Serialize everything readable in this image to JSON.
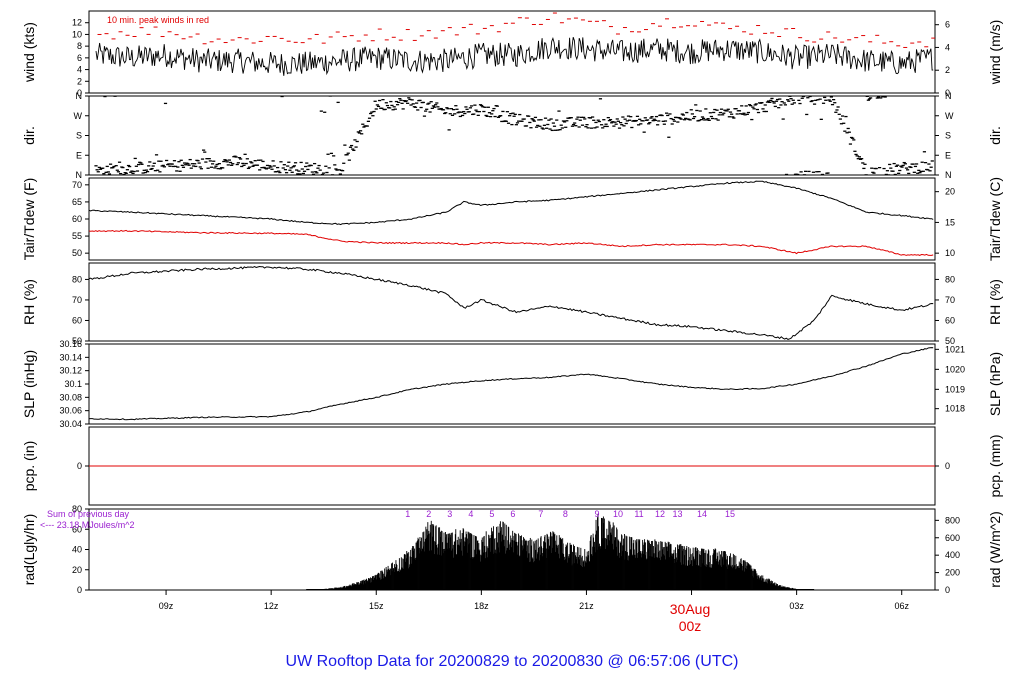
{
  "title": "UW Rooftop Data for 20200829  to  20200830 @ 06:57:06  (UTC)",
  "x_axis": {
    "tick_labels": [
      "09z",
      "12z",
      "15z",
      "18z",
      "21z",
      "00z",
      "03z",
      "06z"
    ],
    "tick_hours": [
      9,
      12,
      15,
      18,
      21,
      24,
      27,
      30
    ],
    "range_hours": [
      6.8,
      30.95
    ],
    "date_label_line1": "30Aug",
    "date_label_line2": "00z",
    "date_label_hour": 24
  },
  "colors": {
    "series": "#000000",
    "peak": "#e00000",
    "dewpoint": "#e00000",
    "precip": "#e00000",
    "note": "#9a1fd0",
    "title": "#1a1ae6"
  },
  "chart_data": [
    {
      "type": "line",
      "name": "wind",
      "ylabel_left": "wind (kts)",
      "ylabel_right": "wind (m/s)",
      "annotation": "10 min. peak winds in red",
      "ylim": [
        0,
        14
      ],
      "left_ticks": [
        0,
        2,
        4,
        6,
        8,
        10,
        12
      ],
      "right_ticks": [
        0,
        2,
        4,
        6
      ],
      "right_ticks_in_left_units": [
        0,
        3.89,
        7.78,
        11.66
      ],
      "x": [
        7,
        8,
        9,
        10,
        11,
        12,
        13,
        14,
        15,
        16,
        17,
        18,
        19,
        20,
        21,
        22,
        23,
        24,
        25,
        26,
        27,
        28,
        29,
        30,
        30.9
      ],
      "values": [
        6.5,
        6,
        6.5,
        5.5,
        5.5,
        5,
        5,
        5.5,
        6,
        5.5,
        5.5,
        6.5,
        6.5,
        8,
        7.5,
        7,
        7.5,
        7,
        7.5,
        7,
        6,
        6.5,
        5.5,
        5,
        6
      ],
      "peak_values": [
        10,
        10.5,
        10.5,
        9.5,
        9,
        9.5,
        9,
        9.5,
        10,
        10,
        10.5,
        11,
        12,
        13,
        12,
        11,
        12,
        12.5,
        11,
        11,
        10,
        9.5,
        9,
        8.5,
        9
      ]
    },
    {
      "type": "scatter",
      "name": "wind direction",
      "ylabel_left": "dir.",
      "ylabel_right": "dir.",
      "tick_labels": [
        "N",
        "E",
        "S",
        "W",
        "N"
      ],
      "tick_degrees": [
        0,
        90,
        180,
        270,
        360
      ],
      "ylim": [
        0,
        360
      ],
      "x": [
        7,
        8,
        9,
        10,
        11,
        12,
        13,
        14,
        15,
        16,
        17,
        18,
        19,
        20,
        21,
        22,
        23,
        24,
        25,
        26,
        27,
        28,
        29,
        30,
        30.9
      ],
      "values": [
        20,
        30,
        40,
        50,
        60,
        40,
        30,
        25,
        320,
        330,
        290,
        300,
        250,
        230,
        240,
        240,
        250,
        270,
        280,
        310,
        350,
        350,
        10,
        30,
        40
      ]
    },
    {
      "type": "line",
      "name": "temperature and dewpoint",
      "ylabel_left": "Tair/Tdew (F)",
      "ylabel_right": "Tair/Tdew (C)",
      "ylim": [
        48,
        72
      ],
      "left_ticks": [
        50,
        55,
        60,
        65,
        70
      ],
      "right_ticks": [
        10,
        15,
        20
      ],
      "right_ticks_in_left_units": [
        50,
        59,
        68
      ],
      "x": [
        6.8,
        8,
        10,
        12,
        13,
        14,
        15,
        16,
        17,
        17.5,
        18,
        19,
        20,
        21,
        22,
        23,
        24,
        25,
        26,
        27,
        28,
        29,
        30,
        30.9
      ],
      "series": [
        {
          "name": "Tair",
          "values": [
            62.5,
            62,
            61,
            60,
            59,
            58.5,
            59,
            60,
            62,
            65,
            64,
            65,
            65.5,
            66.5,
            67.5,
            68.5,
            69.5,
            70.5,
            71,
            69,
            66,
            62,
            61,
            60
          ]
        },
        {
          "name": "Tdew",
          "values": [
            56.5,
            56.5,
            56,
            55.8,
            55.5,
            53.5,
            53,
            53,
            53,
            52.5,
            53,
            53,
            52.5,
            53,
            52,
            52.5,
            52.5,
            52.5,
            52,
            50,
            52,
            52,
            49.5,
            49.5
          ]
        }
      ]
    },
    {
      "type": "line",
      "name": "relative humidity",
      "ylabel_left": "RH (%)",
      "ylabel_right": "RH (%)",
      "ylim": [
        50,
        88
      ],
      "left_ticks": [
        50,
        60,
        70,
        80
      ],
      "right_ticks": [
        50,
        60,
        70,
        80
      ],
      "x": [
        6.8,
        8,
        10,
        12,
        13,
        14,
        15,
        16,
        17,
        17.5,
        18,
        19,
        20,
        21,
        22,
        23,
        24,
        25,
        26,
        26.8,
        27.5,
        28,
        29,
        30,
        30.9
      ],
      "values": [
        80,
        83,
        85,
        86,
        85,
        83,
        80,
        77,
        73,
        66,
        70,
        64,
        67,
        64,
        61,
        58,
        57,
        55,
        53,
        51,
        60,
        72,
        68,
        65,
        68
      ]
    },
    {
      "type": "line",
      "name": "sea level pressure",
      "ylabel_left": "SLP (inHg)",
      "ylabel_right": "SLP (hPa)",
      "ylim": [
        30.04,
        30.16
      ],
      "left_ticks": [
        30.04,
        30.06,
        30.08,
        30.1,
        30.12,
        30.14,
        30.16
      ],
      "right_ticks": [
        1018,
        1019,
        1020,
        1021
      ],
      "right_ticks_in_left_units": [
        30.063,
        30.092,
        30.122,
        30.152
      ],
      "x": [
        6.8,
        8,
        10,
        12,
        13,
        14,
        15,
        16,
        17,
        18,
        19,
        20,
        21,
        22,
        23,
        24,
        25,
        26,
        27,
        28,
        29,
        30,
        30.9
      ],
      "values": [
        30.048,
        30.047,
        30.05,
        30.051,
        30.058,
        30.07,
        30.08,
        30.092,
        30.1,
        30.105,
        30.108,
        30.11,
        30.115,
        30.108,
        30.1,
        30.095,
        30.092,
        30.093,
        30.1,
        30.112,
        30.127,
        30.145,
        30.155
      ]
    },
    {
      "type": "line",
      "name": "precipitation",
      "ylabel_left": "pcp. (in)",
      "ylabel_right": "pcp. (mm)",
      "ylim": [
        -1,
        1
      ],
      "left_ticks": [
        0
      ],
      "right_ticks": [
        0
      ],
      "x": [
        6.8,
        30.95
      ],
      "values": [
        0,
        0
      ]
    },
    {
      "type": "area",
      "name": "solar radiation",
      "ylabel_left": "rad(Lgly/hr)",
      "ylabel_right": "rad (W/m^2)",
      "ylim": [
        0,
        80
      ],
      "left_ticks": [
        0,
        20,
        40,
        60,
        80
      ],
      "right_ticks": [
        0,
        200,
        400,
        600,
        800
      ],
      "right_ticks_in_left_units": [
        0,
        17.2,
        34.4,
        51.6,
        68.8
      ],
      "annotation_line1": "Sum of previous day",
      "annotation_line2": "<--- 23.18 MJoules/m^2",
      "hour_labels": [
        "1",
        "2",
        "3",
        "4",
        "5",
        "6",
        "7",
        "8",
        "9",
        "10",
        "11",
        "12",
        "13",
        "14",
        "15"
      ],
      "hour_label_x": [
        15.9,
        16.5,
        17.1,
        17.7,
        18.3,
        18.9,
        19.7,
        20.4,
        21.3,
        21.9,
        22.5,
        23.1,
        23.6,
        24.3,
        25.1
      ],
      "x": [
        13,
        13.5,
        14,
        14.5,
        15,
        15.5,
        16,
        16.3,
        16.5,
        17,
        17.5,
        18,
        18.3,
        18.6,
        19,
        19.5,
        20,
        20.5,
        21,
        21.3,
        21.6,
        22,
        22.5,
        23,
        23.5,
        24,
        24.5,
        25,
        25.5,
        26,
        26.5,
        27,
        27.5
      ],
      "values": [
        0,
        1,
        3,
        8,
        15,
        28,
        40,
        55,
        68,
        55,
        60,
        50,
        62,
        68,
        55,
        48,
        58,
        45,
        40,
        72,
        70,
        55,
        50,
        48,
        45,
        42,
        40,
        38,
        30,
        15,
        5,
        1,
        0
      ]
    }
  ]
}
